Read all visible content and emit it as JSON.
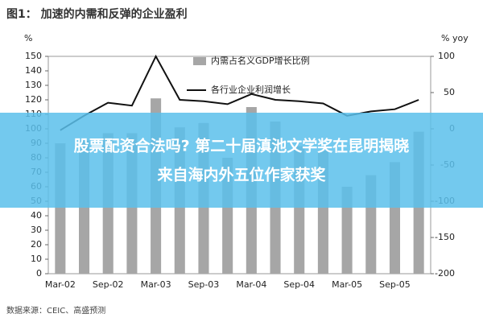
{
  "chart_data": {
    "type": "bar-line",
    "title": "图1： 加速的内需和反弹的企业盈利",
    "y_label": "%",
    "y2_label": "% yoy",
    "categories": [
      "Mar-02",
      null,
      "Sep-02",
      null,
      "Mar-03",
      null,
      "Sep-03",
      null,
      "Mar-04",
      null,
      "Sep-04",
      null,
      "Mar-05",
      null,
      "Sep-05",
      null
    ],
    "series": [
      {
        "name": "内需占名义GDP增长比例",
        "type": "bar",
        "color": "#a6a6a6",
        "values": [
          90,
          92,
          97,
          97,
          121,
          101,
          104,
          80,
          115,
          105,
          88,
          85,
          60,
          68,
          77,
          98
        ]
      },
      {
        "name": "各行业企业利润增长",
        "type": "line",
        "axis": "y2",
        "color": "#111111",
        "values": [
          -2,
          18,
          36,
          32,
          100,
          40,
          38,
          34,
          48,
          40,
          38,
          35,
          18,
          24,
          27,
          40
        ]
      }
    ],
    "ylim": [
      0,
      150
    ],
    "yticks": [
      0,
      10,
      20,
      30,
      40,
      50,
      60,
      70,
      80,
      90,
      100,
      110,
      120,
      130,
      140,
      150
    ],
    "y2lim": [
      -200,
      100
    ],
    "y2ticks": [
      -200,
      -150,
      -100,
      -50,
      0,
      50,
      100
    ]
  },
  "source": "数据来源：CEIC、高盛预测",
  "banner": [
    "股票配资合法吗? 第二十届滇池文学奖在昆明揭晓",
    "来自海内外五位作家获奖"
  ]
}
